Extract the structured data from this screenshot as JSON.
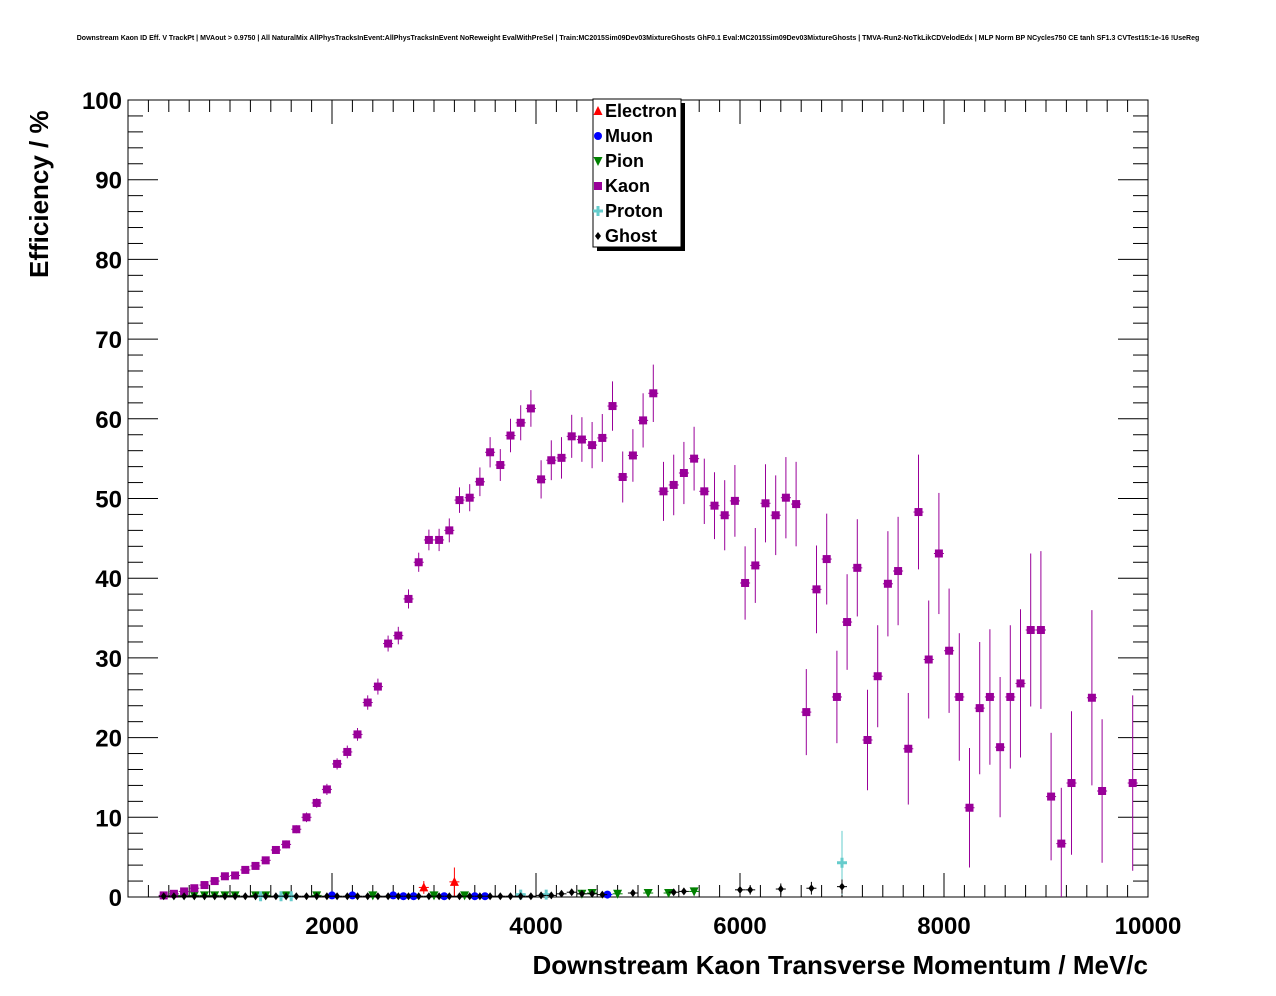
{
  "chart_data": {
    "type": "scatter",
    "title": "Downstream Kaon ID Eff. V TrackPt | MVAout > 0.9750 | All NaturalMix AllPhysTracksInEvent:AllPhysTracksInEvent NoReweight EvalWithPreSel | Train:MC2015Sim09Dev03MixtureGhosts GhF0.1 Eval:MC2015Sim09Dev03MixtureGhosts | TMVA-Run2-NoTkLikCDVelodEdx | MLP Norm BP NCycles750 CE tanh SF1.3 CVTest15:1e-16 !UseReg",
    "xlabel": "Downstream Kaon Transverse Momentum / MeV/c",
    "ylabel": "Efficiency / %",
    "xlim": [
      0,
      10000
    ],
    "ylim": [
      0,
      100
    ],
    "xticks": [
      "2000",
      "4000",
      "6000",
      "8000",
      "10000"
    ],
    "yticks": [
      "0",
      "10",
      "20",
      "30",
      "40",
      "50",
      "60",
      "70",
      "80",
      "90",
      "100"
    ],
    "grid": false,
    "legend_position": "top-center",
    "series": [
      {
        "name": "Electron",
        "color": "#ff0000",
        "marker": "triangle-up",
        "points": [
          [
            2900,
            1.2,
            0.8
          ],
          [
            3200,
            1.9,
            1.8
          ]
        ]
      },
      {
        "name": "Muon",
        "color": "#0000ff",
        "marker": "circle",
        "points": [
          [
            2000,
            0.2,
            0.1
          ],
          [
            2200,
            0.2,
            0.1
          ],
          [
            2600,
            0.2,
            0.1
          ],
          [
            2700,
            0.1,
            0.1
          ],
          [
            2800,
            0.1,
            0.1
          ],
          [
            3100,
            0.1,
            0.1
          ],
          [
            3400,
            0.1,
            0.1
          ],
          [
            3500,
            0.1,
            0.1
          ],
          [
            4700,
            0.3,
            0.2
          ]
        ]
      },
      {
        "name": "Pion",
        "color": "#008000",
        "marker": "triangle-down",
        "points": [
          [
            450,
            0.2,
            0.05
          ],
          [
            550,
            0.2,
            0.05
          ],
          [
            650,
            0.2,
            0.05
          ],
          [
            750,
            0.2,
            0.05
          ],
          [
            850,
            0.2,
            0.05
          ],
          [
            950,
            0.2,
            0.05
          ],
          [
            1050,
            0.2,
            0.05
          ],
          [
            1250,
            0.2,
            0.1
          ],
          [
            1350,
            0.2,
            0.1
          ],
          [
            1550,
            0.2,
            0.1
          ],
          [
            1850,
            0.2,
            0.1
          ],
          [
            2400,
            0.2,
            0.1
          ],
          [
            3000,
            0.2,
            0.1
          ],
          [
            3300,
            0.2,
            0.1
          ],
          [
            4450,
            0.4,
            0.3
          ],
          [
            4550,
            0.5,
            0.3
          ],
          [
            4800,
            0.4,
            0.3
          ],
          [
            5100,
            0.5,
            0.3
          ],
          [
            5300,
            0.5,
            0.3
          ],
          [
            5550,
            0.7,
            0.5
          ]
        ]
      },
      {
        "name": "Kaon",
        "color": "#990099",
        "marker": "square",
        "points": [
          [
            350,
            0.2,
            0.1
          ],
          [
            450,
            0.4,
            0.1
          ],
          [
            550,
            0.7,
            0.1
          ],
          [
            650,
            1.1,
            0.2
          ],
          [
            750,
            1.5,
            0.2
          ],
          [
            850,
            2.0,
            0.2
          ],
          [
            950,
            2.6,
            0.3
          ],
          [
            1050,
            2.7,
            0.3
          ],
          [
            1150,
            3.4,
            0.3
          ],
          [
            1250,
            3.9,
            0.4
          ],
          [
            1350,
            4.6,
            0.4
          ],
          [
            1450,
            5.9,
            0.4
          ],
          [
            1550,
            6.6,
            0.5
          ],
          [
            1650,
            8.5,
            0.5
          ],
          [
            1750,
            10.0,
            0.6
          ],
          [
            1850,
            11.8,
            0.6
          ],
          [
            1950,
            13.5,
            0.7
          ],
          [
            2050,
            16.7,
            0.7
          ],
          [
            2150,
            18.2,
            0.8
          ],
          [
            2250,
            20.4,
            0.8
          ],
          [
            2350,
            24.4,
            0.9
          ],
          [
            2450,
            26.4,
            1.0
          ],
          [
            2550,
            31.8,
            1.0
          ],
          [
            2650,
            32.8,
            1.1
          ],
          [
            2750,
            37.4,
            1.2
          ],
          [
            2850,
            42.0,
            1.2
          ],
          [
            2950,
            44.8,
            1.3
          ],
          [
            3050,
            44.8,
            1.4
          ],
          [
            3150,
            46.0,
            1.5
          ],
          [
            3250,
            49.8,
            1.6
          ],
          [
            3350,
            50.1,
            1.7
          ],
          [
            3450,
            52.1,
            1.8
          ],
          [
            3550,
            55.8,
            1.9
          ],
          [
            3650,
            54.2,
            2.0
          ],
          [
            3750,
            57.9,
            2.1
          ],
          [
            3850,
            59.5,
            2.2
          ],
          [
            3950,
            61.3,
            2.3
          ],
          [
            4050,
            52.4,
            2.4
          ],
          [
            4150,
            54.8,
            2.5
          ],
          [
            4250,
            55.1,
            2.6
          ],
          [
            4350,
            57.8,
            2.7
          ],
          [
            4450,
            57.4,
            2.8
          ],
          [
            4550,
            56.7,
            2.9
          ],
          [
            4650,
            57.6,
            3.0
          ],
          [
            4750,
            61.6,
            3.1
          ],
          [
            4850,
            52.7,
            3.2
          ],
          [
            4950,
            55.4,
            3.3
          ],
          [
            5050,
            59.8,
            3.4
          ],
          [
            5150,
            63.2,
            3.6
          ],
          [
            5250,
            50.9,
            3.7
          ],
          [
            5350,
            51.7,
            3.8
          ],
          [
            5450,
            53.2,
            3.9
          ],
          [
            5550,
            55.0,
            4.0
          ],
          [
            5650,
            50.9,
            4.1
          ],
          [
            5750,
            49.1,
            4.2
          ],
          [
            5850,
            47.9,
            4.4
          ],
          [
            5950,
            49.7,
            4.5
          ],
          [
            6050,
            39.4,
            4.6
          ],
          [
            6150,
            41.6,
            4.7
          ],
          [
            6250,
            49.4,
            4.9
          ],
          [
            6350,
            47.9,
            5.0
          ],
          [
            6450,
            50.1,
            5.1
          ],
          [
            6550,
            49.3,
            5.3
          ],
          [
            6650,
            23.2,
            5.4
          ],
          [
            6750,
            38.6,
            5.5
          ],
          [
            6850,
            42.4,
            5.7
          ],
          [
            6950,
            25.1,
            5.8
          ],
          [
            7050,
            34.5,
            6.0
          ],
          [
            7150,
            41.3,
            6.1
          ],
          [
            7250,
            19.7,
            6.3
          ],
          [
            7350,
            27.7,
            6.4
          ],
          [
            7450,
            39.3,
            6.6
          ],
          [
            7550,
            40.9,
            6.8
          ],
          [
            7650,
            18.6,
            7.0
          ],
          [
            7750,
            48.3,
            7.2
          ],
          [
            7850,
            29.8,
            7.4
          ],
          [
            7950,
            43.1,
            7.6
          ],
          [
            8050,
            30.9,
            7.8
          ],
          [
            8150,
            25.1,
            8.0
          ],
          [
            8250,
            11.2,
            7.5
          ],
          [
            8350,
            23.7,
            8.3
          ],
          [
            8450,
            25.1,
            8.5
          ],
          [
            8550,
            18.8,
            8.8
          ],
          [
            8650,
            25.1,
            9.0
          ],
          [
            8750,
            26.8,
            9.3
          ],
          [
            8850,
            33.5,
            9.6
          ],
          [
            8950,
            33.5,
            9.9
          ],
          [
            9050,
            12.6,
            8.0
          ],
          [
            9150,
            6.7,
            7.0
          ],
          [
            9250,
            14.3,
            9.0
          ],
          [
            9450,
            25.0,
            11.0
          ],
          [
            9550,
            13.3,
            9.0
          ],
          [
            9850,
            14.3,
            11.0
          ]
        ]
      },
      {
        "name": "Proton",
        "color": "#66cccc",
        "marker": "cross",
        "points": [
          [
            1300,
            0.1,
            0.05
          ],
          [
            1500,
            0.1,
            0.05
          ],
          [
            1600,
            0.1,
            0.05
          ],
          [
            3850,
            0.3,
            0.2
          ],
          [
            4100,
            0.3,
            0.2
          ],
          [
            7000,
            4.3,
            4.0
          ]
        ]
      },
      {
        "name": "Ghost",
        "color": "#000000",
        "marker": "diamond",
        "points": [
          [
            350,
            0.1,
            0.05
          ],
          [
            450,
            0.1,
            0.05
          ],
          [
            550,
            0.1,
            0.05
          ],
          [
            650,
            0.1,
            0.05
          ],
          [
            750,
            0.1,
            0.05
          ],
          [
            850,
            0.1,
            0.05
          ],
          [
            950,
            0.1,
            0.05
          ],
          [
            1050,
            0.1,
            0.05
          ],
          [
            1150,
            0.1,
            0.05
          ],
          [
            1250,
            0.1,
            0.05
          ],
          [
            1350,
            0.1,
            0.05
          ],
          [
            1450,
            0.1,
            0.05
          ],
          [
            1550,
            0.1,
            0.05
          ],
          [
            1650,
            0.1,
            0.05
          ],
          [
            1750,
            0.1,
            0.05
          ],
          [
            1850,
            0.1,
            0.05
          ],
          [
            1950,
            0.1,
            0.05
          ],
          [
            2050,
            0.1,
            0.05
          ],
          [
            2150,
            0.1,
            0.05
          ],
          [
            2250,
            0.1,
            0.05
          ],
          [
            2350,
            0.1,
            0.05
          ],
          [
            2450,
            0.1,
            0.05
          ],
          [
            2550,
            0.1,
            0.05
          ],
          [
            2650,
            0.1,
            0.05
          ],
          [
            2750,
            0.1,
            0.05
          ],
          [
            2850,
            0.1,
            0.05
          ],
          [
            2950,
            0.1,
            0.05
          ],
          [
            3050,
            0.1,
            0.05
          ],
          [
            3150,
            0.1,
            0.05
          ],
          [
            3250,
            0.1,
            0.05
          ],
          [
            3350,
            0.1,
            0.05
          ],
          [
            3450,
            0.1,
            0.05
          ],
          [
            3550,
            0.1,
            0.05
          ],
          [
            3650,
            0.1,
            0.05
          ],
          [
            3750,
            0.1,
            0.05
          ],
          [
            3850,
            0.1,
            0.05
          ],
          [
            3950,
            0.1,
            0.05
          ],
          [
            4050,
            0.2,
            0.1
          ],
          [
            4150,
            0.2,
            0.1
          ],
          [
            4250,
            0.4,
            0.2
          ],
          [
            4350,
            0.6,
            0.3
          ],
          [
            4450,
            0.4,
            0.3
          ],
          [
            4550,
            0.4,
            0.3
          ],
          [
            4650,
            0.3,
            0.2
          ],
          [
            4950,
            0.5,
            0.3
          ],
          [
            5350,
            0.6,
            0.4
          ],
          [
            5450,
            0.7,
            0.4
          ],
          [
            6000,
            0.9,
            0.6
          ],
          [
            6100,
            0.9,
            0.6
          ],
          [
            6400,
            1.0,
            0.7
          ],
          [
            6700,
            1.1,
            0.8
          ],
          [
            7000,
            1.3,
            0.9
          ]
        ]
      }
    ]
  }
}
